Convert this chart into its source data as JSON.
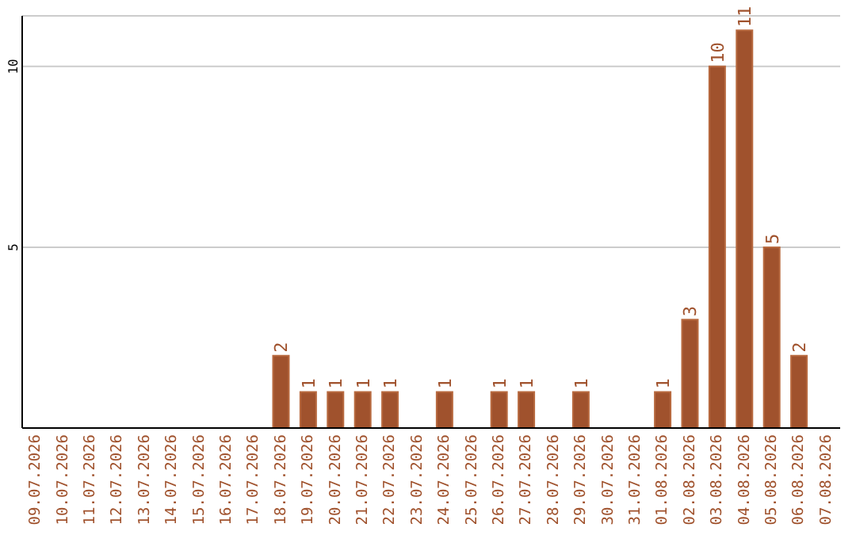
{
  "chart_data": {
    "type": "bar",
    "categories": [
      "09.07.2026",
      "10.07.2026",
      "11.07.2026",
      "12.07.2026",
      "13.07.2026",
      "14.07.2026",
      "15.07.2026",
      "16.07.2026",
      "17.07.2026",
      "18.07.2026",
      "19.07.2026",
      "20.07.2026",
      "21.07.2026",
      "22.07.2026",
      "23.07.2026",
      "24.07.2026",
      "25.07.2026",
      "26.07.2026",
      "27.07.2026",
      "28.07.2026",
      "29.07.2026",
      "30.07.2026",
      "31.07.2026",
      "01.08.2026",
      "02.08.2026",
      "03.08.2026",
      "04.08.2026",
      "05.08.2026",
      "06.08.2026",
      "07.08.2026"
    ],
    "values": [
      null,
      null,
      null,
      null,
      null,
      null,
      null,
      null,
      null,
      2,
      1,
      1,
      1,
      1,
      null,
      1,
      null,
      1,
      1,
      null,
      1,
      null,
      null,
      1,
      3,
      10,
      11,
      5,
      2,
      null
    ],
    "color": "#a0522d",
    "ylim": [
      0,
      11.4
    ],
    "yticks": [
      5,
      10
    ],
    "grid": "y",
    "data_labels": true
  }
}
